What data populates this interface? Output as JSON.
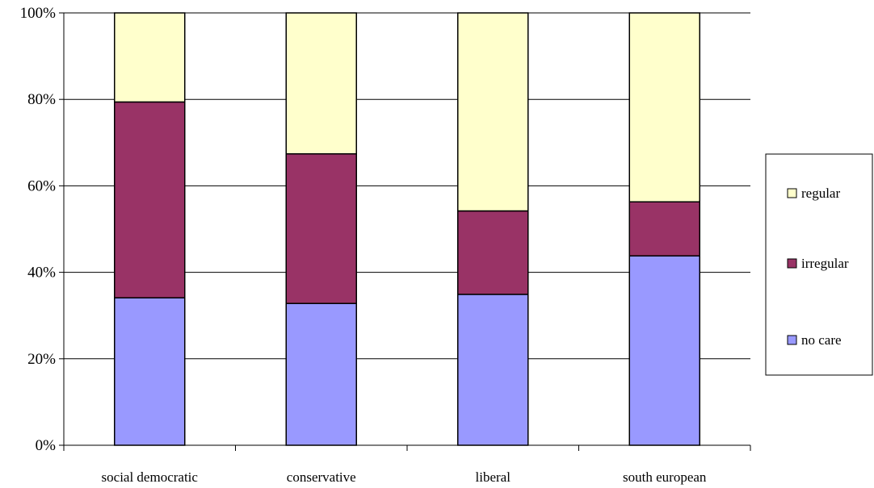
{
  "chart_data": {
    "type": "bar",
    "stacked": "percent",
    "categories": [
      "social democratic",
      "conservative",
      "liberal",
      "south european"
    ],
    "series": [
      {
        "name": "no care",
        "color": "#9999ff",
        "values": [
          34.1,
          32.8,
          34.9,
          43.8
        ]
      },
      {
        "name": "irregular",
        "color": "#993366",
        "values": [
          45.3,
          34.6,
          19.3,
          12.5
        ]
      },
      {
        "name": "regular",
        "color": "#ffffcc",
        "values": [
          20.6,
          32.6,
          45.8,
          43.7
        ]
      }
    ],
    "y_ticks": [
      "0%",
      "20%",
      "40%",
      "60%",
      "80%",
      "100%"
    ],
    "ylim": [
      0,
      100
    ],
    "grid": true,
    "legend": {
      "position": "right",
      "order": [
        "regular",
        "irregular",
        "no care"
      ]
    }
  }
}
